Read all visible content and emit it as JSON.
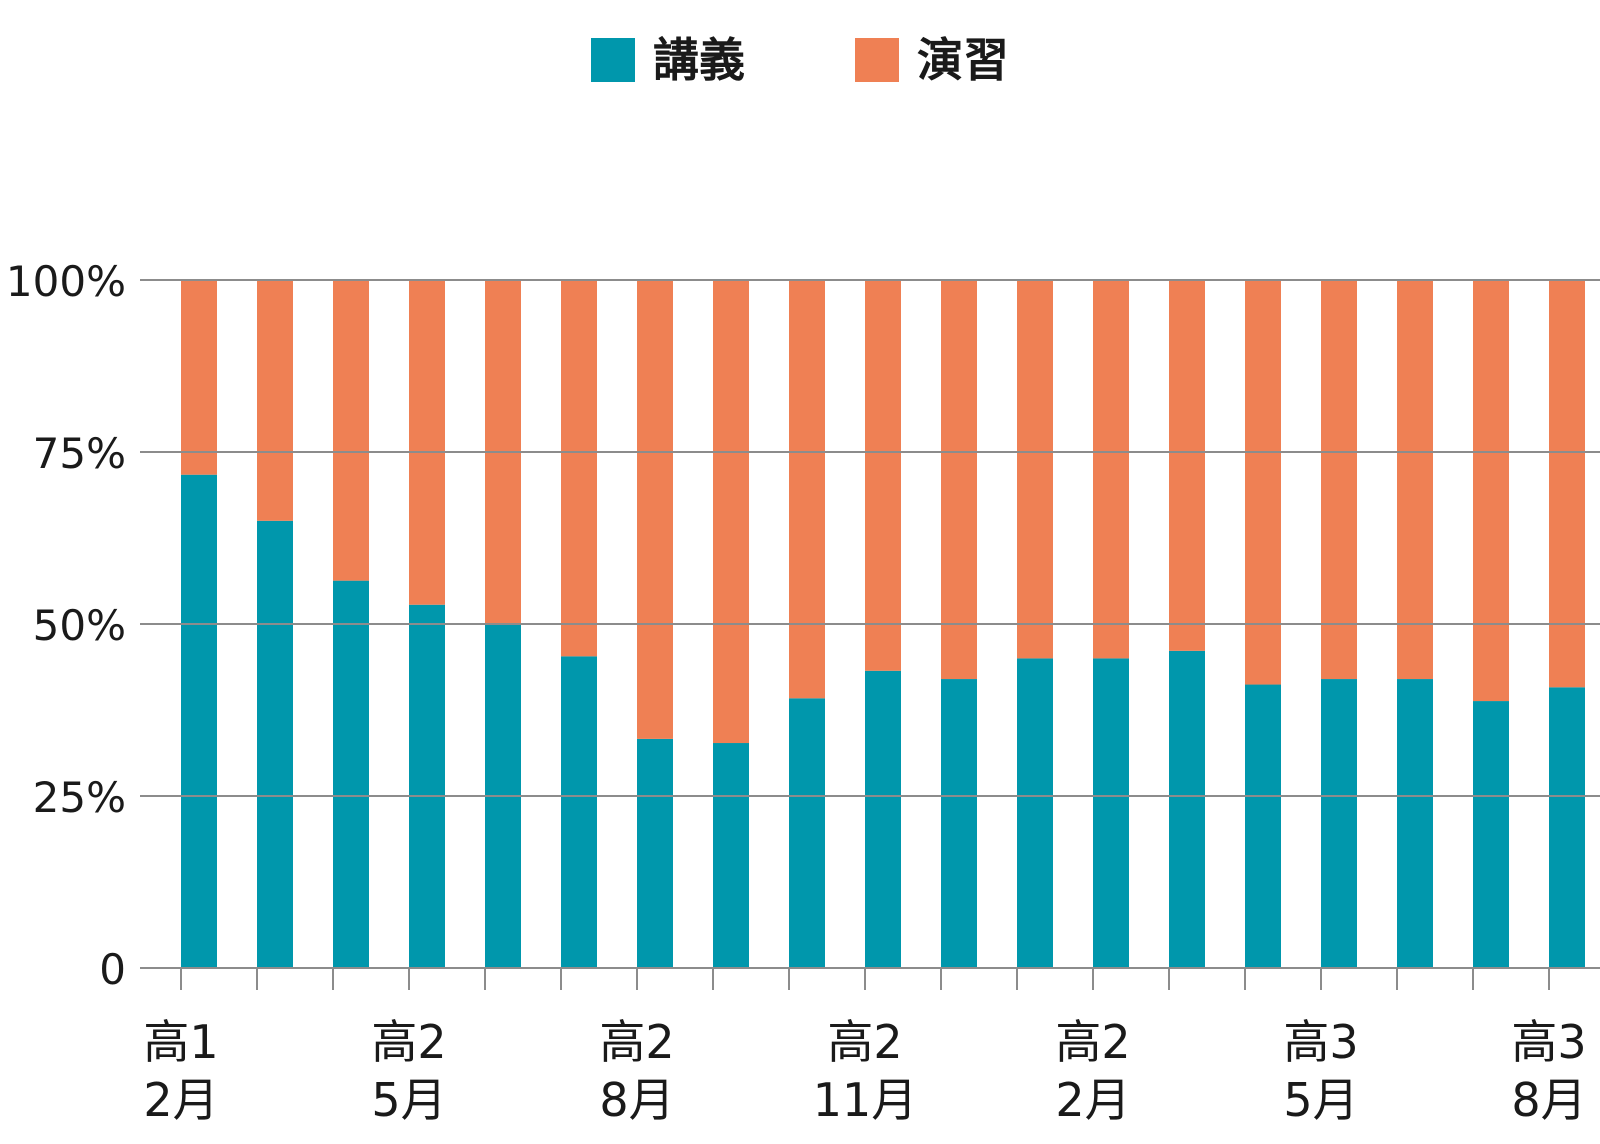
{
  "chart_data": {
    "type": "bar",
    "stacked": true,
    "categories": [
      "高1\n2月",
      "",
      "",
      "高2\n5月",
      "",
      "",
      "高2\n8月",
      "",
      "",
      "高2\n11月",
      "",
      "",
      "高2\n2月",
      "",
      "",
      "高3\n5月",
      "",
      "",
      "高3\n8月"
    ],
    "series": [
      {
        "name": "講義",
        "color": "#0097ac",
        "values": [
          71.7,
          65.0,
          56.3,
          52.8,
          50.0,
          45.3,
          33.3,
          32.7,
          39.2,
          43.2,
          42.0,
          45.0,
          45.0,
          46.1,
          41.2,
          42.0,
          42.0,
          38.8,
          40.8
        ]
      },
      {
        "name": "演習",
        "color": "#ef8054",
        "values": [
          28.3,
          35.0,
          43.7,
          47.2,
          50.0,
          54.7,
          66.7,
          67.3,
          60.8,
          56.8,
          58.0,
          55.0,
          55.0,
          53.9,
          58.8,
          58.0,
          58.0,
          61.2,
          59.2
        ]
      }
    ],
    "yticks": [
      "0",
      "25%",
      "50%",
      "75%",
      "100%"
    ],
    "ylim": [
      0,
      100
    ],
    "legend_position": "top-center",
    "grid": true,
    "gridline_color": "#8c8c8c"
  }
}
